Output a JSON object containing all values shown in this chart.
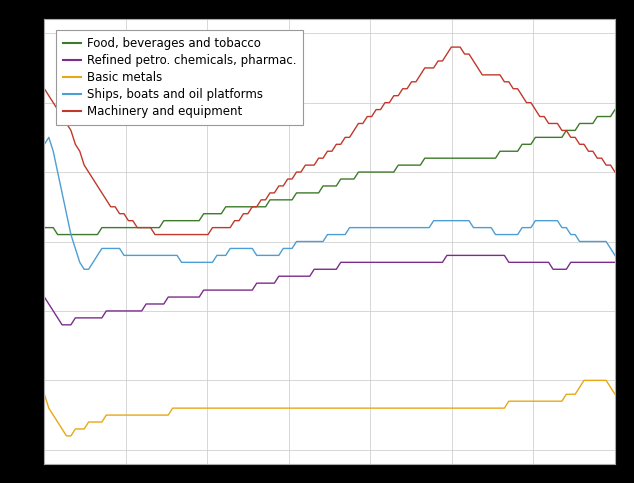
{
  "background_color": "#000000",
  "plot_background": "#ffffff",
  "grid_color": "#c8c8c8",
  "legend_labels": [
    "Food, beverages and tobacco",
    "Refined petro. chemicals, pharmac.",
    "Basic metals",
    "Ships, boats and oil platforms",
    "Machinery and equipment"
  ],
  "line_colors": [
    "#3d7a2a",
    "#7b2d8b",
    "#e6a817",
    "#4d9ed4",
    "#c0392b"
  ],
  "n_points": 130,
  "food_bev": [
    62,
    62,
    62,
    61,
    61,
    61,
    61,
    61,
    61,
    61,
    61,
    61,
    61,
    62,
    62,
    62,
    62,
    62,
    62,
    62,
    62,
    62,
    62,
    62,
    62,
    62,
    62,
    63,
    63,
    63,
    63,
    63,
    63,
    63,
    63,
    63,
    64,
    64,
    64,
    64,
    64,
    65,
    65,
    65,
    65,
    65,
    65,
    65,
    65,
    65,
    65,
    66,
    66,
    66,
    66,
    66,
    66,
    67,
    67,
    67,
    67,
    67,
    67,
    68,
    68,
    68,
    68,
    69,
    69,
    69,
    69,
    70,
    70,
    70,
    70,
    70,
    70,
    70,
    70,
    70,
    71,
    71,
    71,
    71,
    71,
    71,
    72,
    72,
    72,
    72,
    72,
    72,
    72,
    72,
    72,
    72,
    72,
    72,
    72,
    72,
    72,
    72,
    72,
    73,
    73,
    73,
    73,
    73,
    74,
    74,
    74,
    75,
    75,
    75,
    75,
    75,
    75,
    75,
    76,
    76,
    76,
    77,
    77,
    77,
    77,
    78,
    78,
    78,
    78,
    79
  ],
  "refined_petro": [
    52,
    51,
    50,
    49,
    48,
    48,
    48,
    49,
    49,
    49,
    49,
    49,
    49,
    49,
    50,
    50,
    50,
    50,
    50,
    50,
    50,
    50,
    50,
    51,
    51,
    51,
    51,
    51,
    52,
    52,
    52,
    52,
    52,
    52,
    52,
    52,
    53,
    53,
    53,
    53,
    53,
    53,
    53,
    53,
    53,
    53,
    53,
    53,
    54,
    54,
    54,
    54,
    54,
    55,
    55,
    55,
    55,
    55,
    55,
    55,
    55,
    56,
    56,
    56,
    56,
    56,
    56,
    57,
    57,
    57,
    57,
    57,
    57,
    57,
    57,
    57,
    57,
    57,
    57,
    57,
    57,
    57,
    57,
    57,
    57,
    57,
    57,
    57,
    57,
    57,
    57,
    58,
    58,
    58,
    58,
    58,
    58,
    58,
    58,
    58,
    58,
    58,
    58,
    58,
    58,
    57,
    57,
    57,
    57,
    57,
    57,
    57,
    57,
    57,
    57,
    56,
    56,
    56,
    56,
    57,
    57,
    57,
    57,
    57,
    57,
    57,
    57,
    57,
    57,
    57
  ],
  "basic_metals": [
    38,
    36,
    35,
    34,
    33,
    32,
    32,
    33,
    33,
    33,
    34,
    34,
    34,
    34,
    35,
    35,
    35,
    35,
    35,
    35,
    35,
    35,
    35,
    35,
    35,
    35,
    35,
    35,
    35,
    36,
    36,
    36,
    36,
    36,
    36,
    36,
    36,
    36,
    36,
    36,
    36,
    36,
    36,
    36,
    36,
    36,
    36,
    36,
    36,
    36,
    36,
    36,
    36,
    36,
    36,
    36,
    36,
    36,
    36,
    36,
    36,
    36,
    36,
    36,
    36,
    36,
    36,
    36,
    36,
    36,
    36,
    36,
    36,
    36,
    36,
    36,
    36,
    36,
    36,
    36,
    36,
    36,
    36,
    36,
    36,
    36,
    36,
    36,
    36,
    36,
    36,
    36,
    36,
    36,
    36,
    36,
    36,
    36,
    36,
    36,
    36,
    36,
    36,
    36,
    36,
    37,
    37,
    37,
    37,
    37,
    37,
    37,
    37,
    37,
    37,
    37,
    37,
    37,
    38,
    38,
    38,
    39,
    40,
    40,
    40,
    40,
    40,
    40,
    39,
    38
  ],
  "ships_boats": [
    74,
    75,
    73,
    70,
    67,
    64,
    61,
    59,
    57,
    56,
    56,
    57,
    58,
    59,
    59,
    59,
    59,
    59,
    58,
    58,
    58,
    58,
    58,
    58,
    58,
    58,
    58,
    58,
    58,
    58,
    58,
    57,
    57,
    57,
    57,
    57,
    57,
    57,
    57,
    58,
    58,
    58,
    59,
    59,
    59,
    59,
    59,
    59,
    58,
    58,
    58,
    58,
    58,
    58,
    59,
    59,
    59,
    60,
    60,
    60,
    60,
    60,
    60,
    60,
    61,
    61,
    61,
    61,
    61,
    62,
    62,
    62,
    62,
    62,
    62,
    62,
    62,
    62,
    62,
    62,
    62,
    62,
    62,
    62,
    62,
    62,
    62,
    62,
    63,
    63,
    63,
    63,
    63,
    63,
    63,
    63,
    63,
    62,
    62,
    62,
    62,
    62,
    61,
    61,
    61,
    61,
    61,
    61,
    62,
    62,
    62,
    63,
    63,
    63,
    63,
    63,
    63,
    62,
    62,
    61,
    61,
    60,
    60,
    60,
    60,
    60,
    60,
    60,
    59,
    58
  ],
  "machinery": [
    82,
    81,
    80,
    79,
    78,
    77,
    76,
    74,
    73,
    71,
    70,
    69,
    68,
    67,
    66,
    65,
    65,
    64,
    64,
    63,
    63,
    62,
    62,
    62,
    62,
    61,
    61,
    61,
    61,
    61,
    61,
    61,
    61,
    61,
    61,
    61,
    61,
    61,
    62,
    62,
    62,
    62,
    62,
    63,
    63,
    64,
    64,
    65,
    65,
    66,
    66,
    67,
    67,
    68,
    68,
    69,
    69,
    70,
    70,
    71,
    71,
    71,
    72,
    72,
    73,
    73,
    74,
    74,
    75,
    75,
    76,
    77,
    77,
    78,
    78,
    79,
    79,
    80,
    80,
    81,
    81,
    82,
    82,
    83,
    83,
    84,
    85,
    85,
    85,
    86,
    86,
    87,
    88,
    88,
    88,
    87,
    87,
    86,
    85,
    84,
    84,
    84,
    84,
    84,
    83,
    83,
    82,
    82,
    81,
    80,
    80,
    79,
    78,
    78,
    77,
    77,
    77,
    76,
    76,
    75,
    75,
    74,
    74,
    73,
    73,
    72,
    72,
    71,
    71,
    70
  ]
}
